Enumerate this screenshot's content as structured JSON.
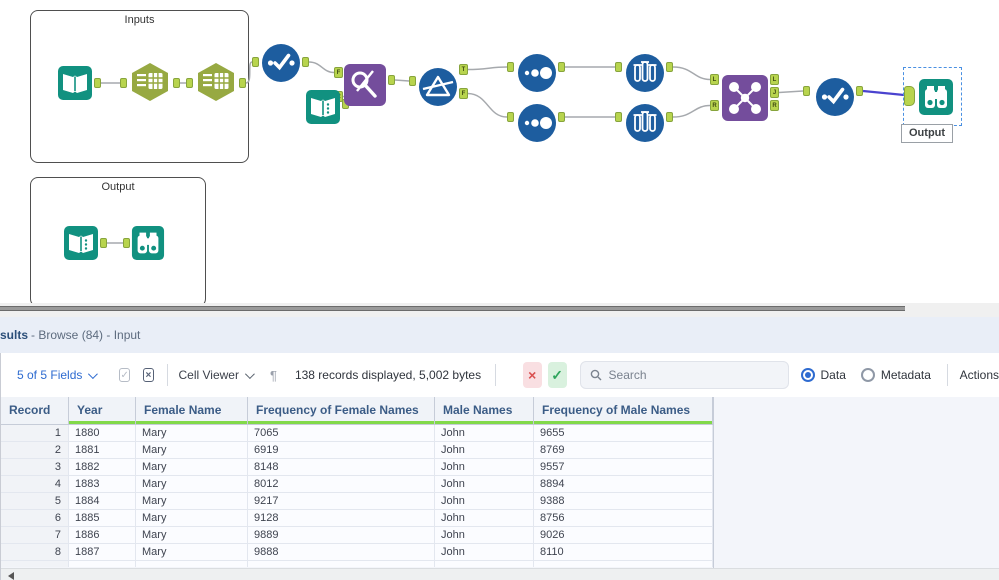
{
  "canvas": {
    "containers": [
      {
        "label": "Inputs"
      },
      {
        "label": "Output"
      }
    ],
    "selected_tool_label": "Output",
    "anchors": {
      "t": "T",
      "f": "F",
      "l": "L",
      "j": "J",
      "r": "R"
    },
    "tools": [
      "input-book",
      "formula-hexagon",
      "formula-hexagon",
      "unique-check-circle",
      "input-book",
      "find-replace",
      "filter-prism",
      "sample-dots",
      "sample-dots",
      "test-tubes",
      "test-tubes",
      "join-multiple",
      "unique-check-circle",
      "browse-binoculars",
      "input-book",
      "browse-binoculars"
    ]
  },
  "results": {
    "title_bold": "sults",
    "title_rest": "- Browse (84) - Input",
    "toolbar": {
      "fields_summary": "5 of 5 Fields",
      "cell_viewer": "Cell Viewer",
      "records_info": "138 records displayed, 5,002 bytes",
      "search_placeholder": "Search",
      "radio_data": "Data",
      "radio_metadata": "Metadata",
      "actions": "Actions",
      "x_glyph": "×",
      "check_glyph": "✓",
      "pilcrow_glyph": "¶"
    },
    "table": {
      "columns": [
        "Record",
        "Year",
        "Female Name",
        "Frequency of Female Names",
        "Male Names",
        "Frequency of Male Names"
      ],
      "rows": [
        [
          "1",
          "1880",
          "Mary",
          "7065",
          "John",
          "9655"
        ],
        [
          "2",
          "1881",
          "Mary",
          "6919",
          "John",
          "8769"
        ],
        [
          "3",
          "1882",
          "Mary",
          "8148",
          "John",
          "9557"
        ],
        [
          "4",
          "1883",
          "Mary",
          "8012",
          "John",
          "8894"
        ],
        [
          "5",
          "1884",
          "Mary",
          "9217",
          "John",
          "9388"
        ],
        [
          "6",
          "1885",
          "Mary",
          "9128",
          "John",
          "8756"
        ],
        [
          "7",
          "1886",
          "Mary",
          "9889",
          "John",
          "9026"
        ],
        [
          "8",
          "1887",
          "Mary",
          "9888",
          "John",
          "8110"
        ]
      ]
    }
  },
  "colors": {
    "tool_blue": "#1d5d9f",
    "tool_teal": "#119180",
    "tool_olive": "#97a942",
    "tool_purple": "#744d9c",
    "anchor_green": "#b8d44e",
    "selection_blue": "#4a90e2",
    "selected_wire": "#4a43cf",
    "header_underline_green": "#82d94a",
    "link_blue": "#2e6bd0"
  }
}
